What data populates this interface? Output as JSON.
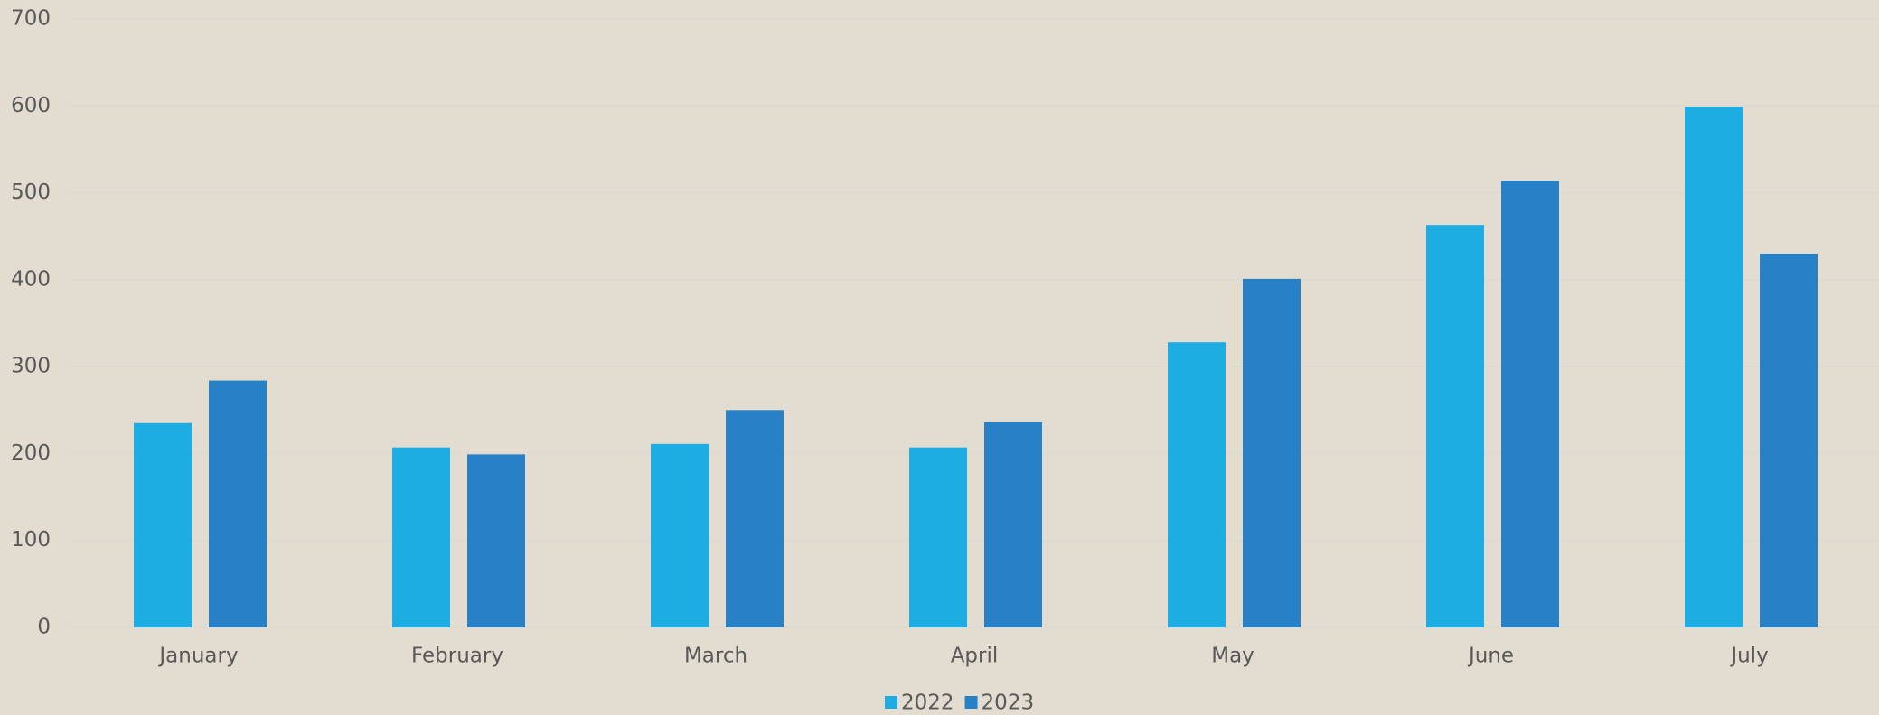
{
  "chart_data": {
    "type": "bar",
    "categories": [
      "January",
      "February",
      "March",
      "April",
      "May",
      "June",
      "July"
    ],
    "series": [
      {
        "name": "2022",
        "color": "#1eade2",
        "values": [
          235,
          207,
          211,
          207,
          328,
          463,
          599
        ]
      },
      {
        "name": "2023",
        "color": "#2881c6",
        "values": [
          284,
          199,
          250,
          236,
          401,
          514,
          430
        ]
      }
    ],
    "ylim": [
      0,
      700
    ],
    "yticks": [
      0,
      100,
      200,
      300,
      400,
      500,
      600,
      700
    ],
    "grid": true,
    "legend": "bottom"
  }
}
